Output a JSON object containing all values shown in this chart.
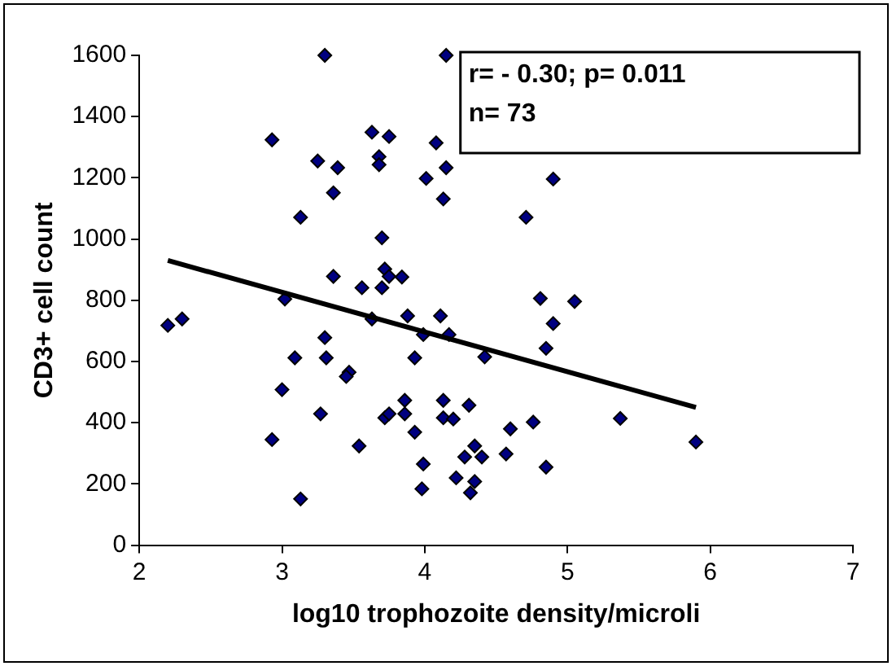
{
  "chart_data": {
    "type": "scatter",
    "xlabel": "log10 trophozoite density/microli",
    "ylabel": "CD3+ cell count",
    "xlim": [
      2,
      7
    ],
    "xticks": [
      2,
      3,
      4,
      5,
      6,
      7
    ],
    "ylim": [
      0,
      1600
    ],
    "yticks": [
      0,
      200,
      400,
      600,
      800,
      1000,
      1200,
      1400,
      1600
    ],
    "grid": false,
    "legend": false,
    "marker": "diamond",
    "annotations": [
      "r= - 0.30; p= 0.011",
      "n= 73"
    ],
    "series": [
      {
        "color": "#000080",
        "x": [
          3.3,
          2.93,
          3.25,
          3.39,
          3.63,
          3.75,
          3.68,
          3.68,
          3.36,
          3.13,
          4.08,
          4.01,
          4.13,
          4.15,
          4.15,
          3.7,
          3.72,
          3.75,
          3.7,
          3.84,
          3.56,
          3.36,
          3.02,
          2.2,
          2.3,
          3.63,
          3.88,
          4.11,
          3.99,
          4.17,
          4.42,
          3.3,
          3.09,
          3.31,
          3.93,
          3.47,
          3.45,
          3.0,
          3.27,
          2.93,
          3.54,
          3.13,
          3.72,
          3.75,
          3.86,
          3.86,
          3.93,
          4.13,
          4.13,
          4.2,
          4.31,
          3.99,
          3.98,
          4.22,
          4.28,
          4.35,
          4.4,
          4.35,
          4.32,
          4.9,
          4.71,
          4.81,
          5.05,
          4.9,
          4.85,
          4.6,
          4.76,
          5.37,
          5.9,
          4.57,
          4.85
        ],
        "values": [
          1600,
          1324,
          1255,
          1233,
          1349,
          1335,
          1269,
          1243,
          1151,
          1071,
          1314,
          1198,
          1131,
          1600,
          1233,
          1004,
          902,
          878,
          841,
          876,
          841,
          878,
          804,
          718,
          739,
          739,
          749,
          749,
          688,
          688,
          615,
          678,
          612,
          612,
          612,
          565,
          551,
          508,
          429,
          345,
          324,
          151,
          416,
          429,
          473,
          429,
          369,
          473,
          416,
          412,
          457,
          265,
          184,
          220,
          288,
          324,
          288,
          208,
          171,
          1196,
          1071,
          806,
          796,
          724,
          643,
          380,
          402,
          414,
          337,
          298,
          255
        ]
      },
      {
        "type": "line",
        "color": "#000000",
        "marker": "none",
        "x": [
          2.2,
          5.9
        ],
        "values": [
          930,
          450
        ]
      }
    ]
  }
}
